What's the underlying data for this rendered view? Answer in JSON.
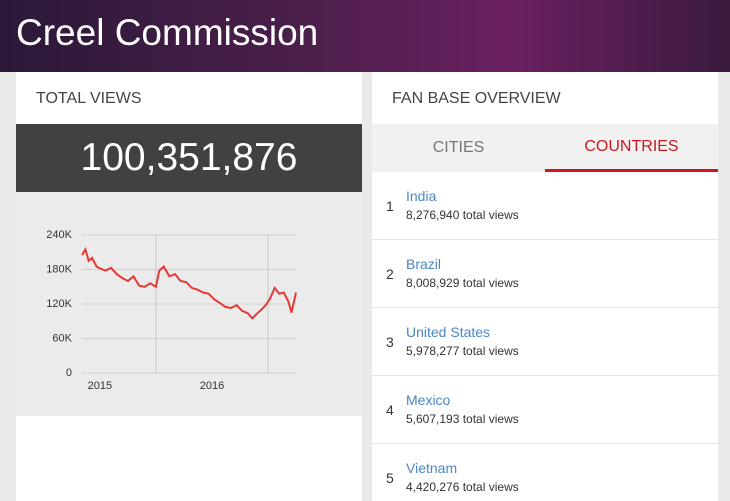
{
  "header": {
    "title": "Creel Commission"
  },
  "total_views": {
    "title": "TOTAL VIEWS",
    "value": "100,351,876"
  },
  "chart_data": {
    "type": "line",
    "color": "#e53935",
    "grid": true,
    "x": [
      2014.84,
      2014.87,
      2014.9,
      2014.93,
      2014.97,
      2015.0,
      2015.05,
      2015.1,
      2015.15,
      2015.2,
      2015.25,
      2015.3,
      2015.35,
      2015.4,
      2015.45,
      2015.5,
      2015.53,
      2015.57,
      2015.62,
      2015.67,
      2015.72,
      2015.77,
      2015.82,
      2015.87,
      2015.92,
      2015.97,
      2016.02,
      2016.07,
      2016.12,
      2016.17,
      2016.22,
      2016.27,
      2016.32,
      2016.36,
      2016.4,
      2016.44,
      2016.48,
      2016.52,
      2016.56,
      2016.6,
      2016.64,
      2016.68,
      2016.71,
      2016.75
    ],
    "values": [
      205000,
      215000,
      195000,
      200000,
      185000,
      182000,
      178000,
      183000,
      172000,
      165000,
      160000,
      168000,
      152000,
      150000,
      156000,
      150000,
      178000,
      185000,
      168000,
      172000,
      160000,
      158000,
      148000,
      145000,
      140000,
      138000,
      128000,
      122000,
      115000,
      113000,
      118000,
      108000,
      104000,
      95000,
      103000,
      110000,
      118000,
      130000,
      148000,
      138000,
      140000,
      125000,
      105000,
      140000
    ],
    "xlim": [
      2014.84,
      2016.75
    ],
    "xticks": [
      2015,
      2016
    ],
    "xgrid": [
      2015.5,
      2016.5
    ],
    "ylim": [
      0,
      240000
    ],
    "yticks": [
      0,
      {
        "value": 60000,
        "label": "60K"
      },
      {
        "value": 120000,
        "label": "120K"
      },
      {
        "value": 180000,
        "label": "180K"
      },
      {
        "value": 240000,
        "label": "240K"
      }
    ]
  },
  "fan_base": {
    "title": "FAN BASE OVERVIEW",
    "tabs": [
      "CITIES",
      "COUNTRIES"
    ],
    "active_tab": 1,
    "rows": [
      {
        "rank": 1,
        "name": "India",
        "views": "8,276,940 total views"
      },
      {
        "rank": 2,
        "name": "Brazil",
        "views": "8,008,929 total views"
      },
      {
        "rank": 3,
        "name": "United States",
        "views": "5,978,277 total views"
      },
      {
        "rank": 4,
        "name": "Mexico",
        "views": "5,607,193 total views"
      },
      {
        "rank": 5,
        "name": "Vietnam",
        "views": "4,420,276 total views"
      }
    ]
  }
}
